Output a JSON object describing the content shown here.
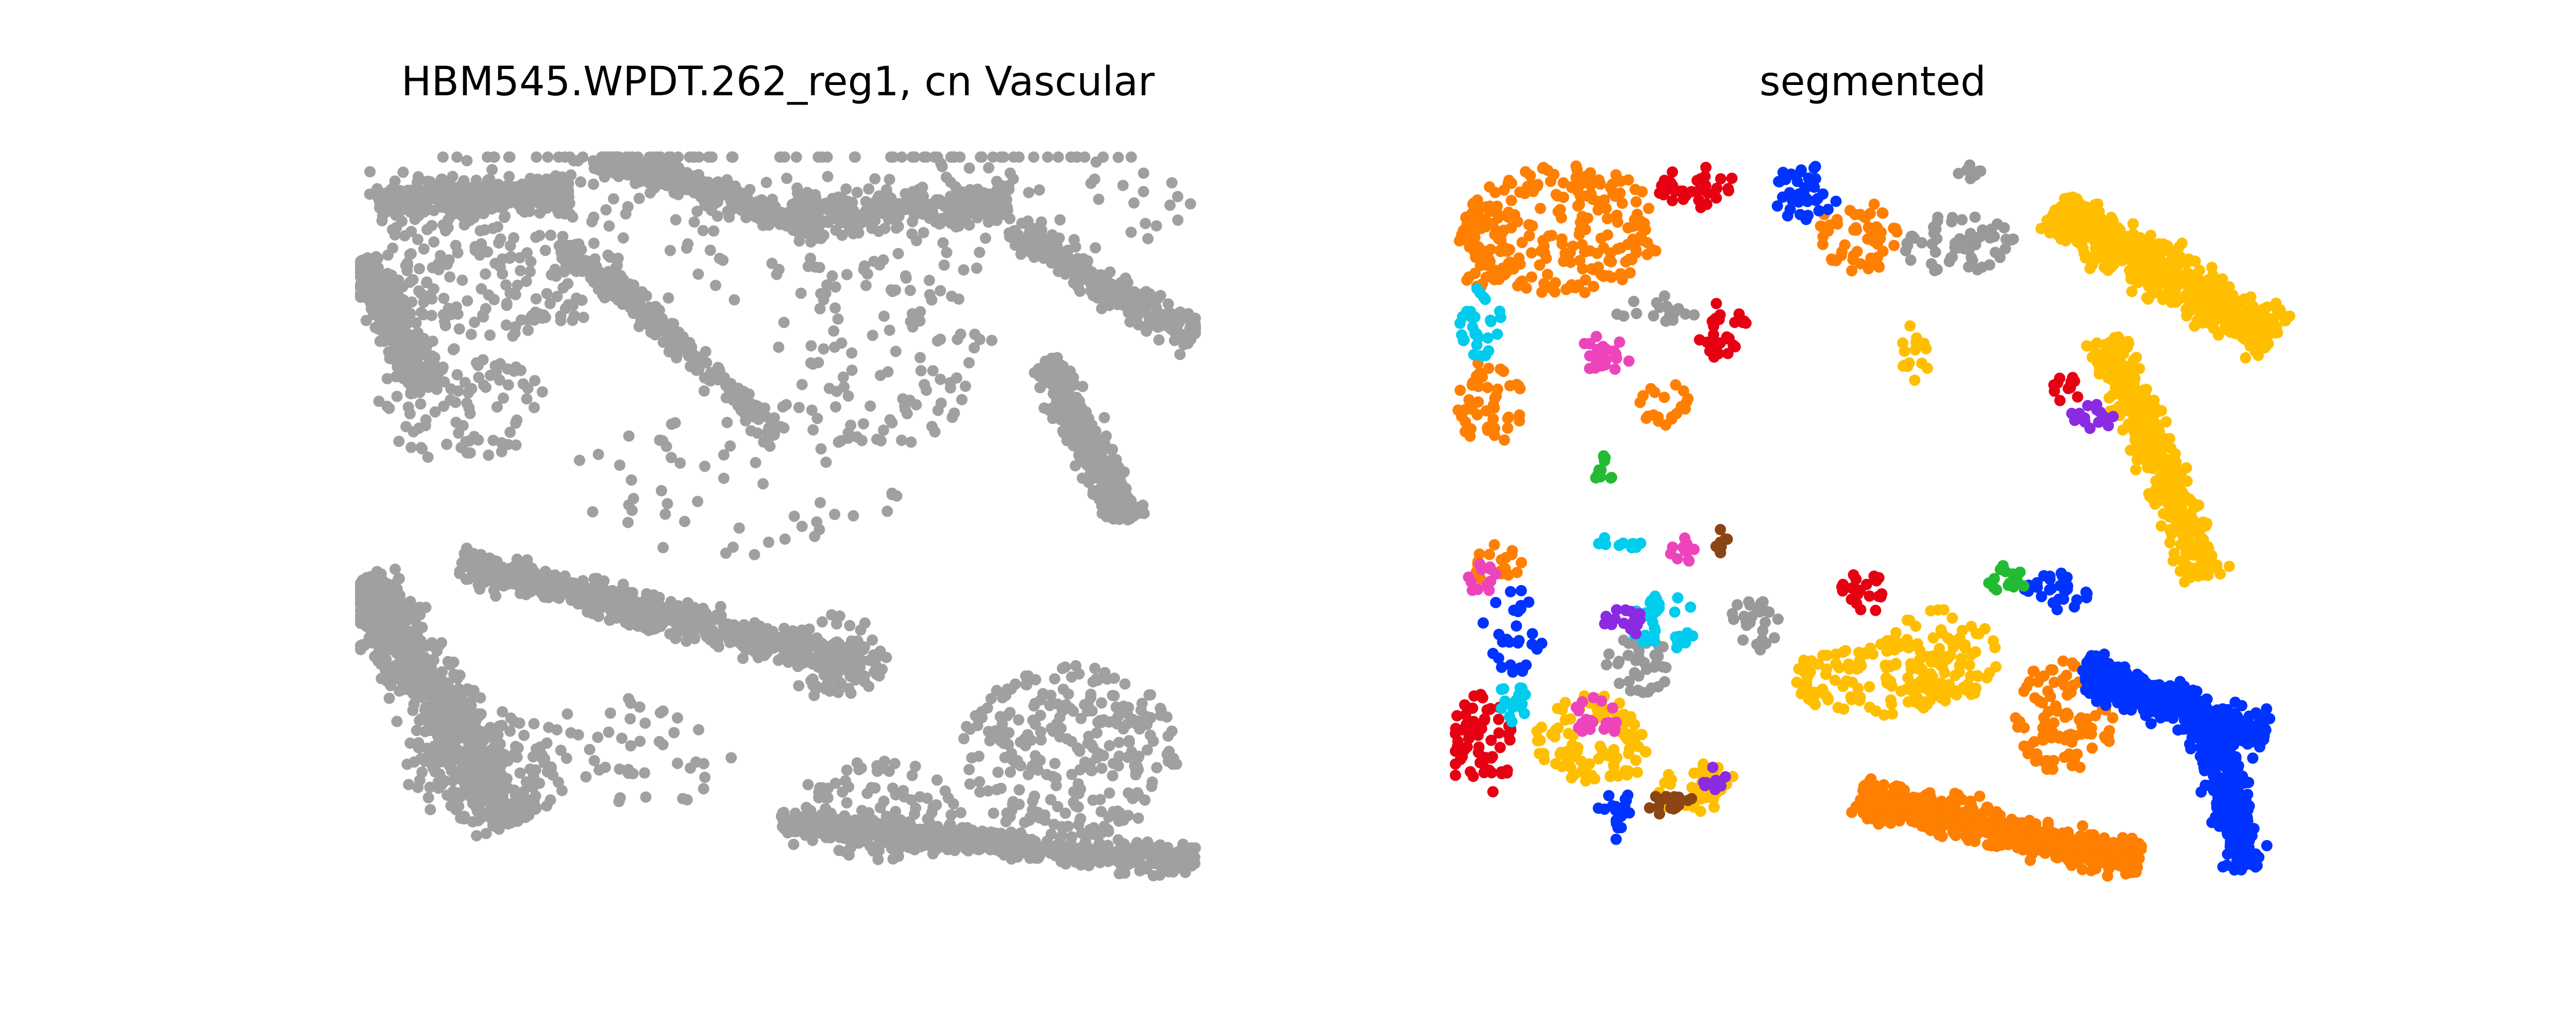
{
  "chart_data": [
    {
      "type": "scatter",
      "title": "HBM545.WPDT.262_reg1, cn Vascular",
      "axes": "off",
      "grid": false,
      "legend": "none",
      "point_color": "#a0a0a0",
      "series": [
        {
          "color": "#a0a0a0",
          "regions": [
            {
              "shape": "band",
              "from": [
                0.02,
                0.06
              ],
              "to": [
                0.25,
                0.05
              ],
              "width": 0.07,
              "density": 0.9
            },
            {
              "shape": "band",
              "from": [
                0.0,
                0.14
              ],
              "to": [
                0.08,
                0.32
              ],
              "width": 0.08,
              "density": 0.9
            },
            {
              "shape": "blob",
              "c": [
                0.17,
                0.15
              ],
              "r": [
                0.14,
                0.1
              ],
              "density": 0.55
            },
            {
              "shape": "band",
              "from": [
                0.28,
                0.0
              ],
              "to": [
                0.55,
                0.1
              ],
              "width": 0.06,
              "density": 0.9
            },
            {
              "shape": "band",
              "from": [
                0.25,
                0.12
              ],
              "to": [
                0.5,
                0.38
              ],
              "width": 0.05,
              "density": 0.6
            },
            {
              "shape": "band",
              "from": [
                0.52,
                0.08
              ],
              "to": [
                0.78,
                0.06
              ],
              "width": 0.08,
              "density": 0.55
            },
            {
              "shape": "band",
              "from": [
                0.78,
                0.1
              ],
              "to": [
                1.0,
                0.25
              ],
              "width": 0.07,
              "density": 0.7
            },
            {
              "shape": "band",
              "from": [
                0.82,
                0.28
              ],
              "to": [
                0.92,
                0.5
              ],
              "width": 0.07,
              "density": 0.9
            },
            {
              "shape": "blob",
              "c": [
                0.62,
                0.28
              ],
              "r": [
                0.14,
                0.12
              ],
              "density": 0.25
            },
            {
              "shape": "blob",
              "c": [
                0.12,
                0.34
              ],
              "r": [
                0.1,
                0.08
              ],
              "density": 0.5
            },
            {
              "shape": "blob",
              "c": [
                0.45,
                0.45
              ],
              "r": [
                0.2,
                0.1
              ],
              "density": 0.12
            },
            {
              "shape": "band",
              "from": [
                0.12,
                0.56
              ],
              "to": [
                0.6,
                0.7
              ],
              "width": 0.07,
              "density": 0.9
            },
            {
              "shape": "blob",
              "c": [
                0.57,
                0.69
              ],
              "r": [
                0.06,
                0.06
              ],
              "density": 0.9
            },
            {
              "shape": "band",
              "from": [
                0.0,
                0.58
              ],
              "to": [
                0.18,
                0.92
              ],
              "width": 0.12,
              "density": 0.75
            },
            {
              "shape": "blob",
              "c": [
                0.15,
                0.84
              ],
              "r": [
                0.1,
                0.08
              ],
              "density": 0.75
            },
            {
              "shape": "blob",
              "c": [
                0.85,
                0.82
              ],
              "r": [
                0.13,
                0.12
              ],
              "density": 0.8
            },
            {
              "shape": "band",
              "from": [
                0.5,
                0.92
              ],
              "to": [
                1.0,
                0.97
              ],
              "width": 0.06,
              "density": 0.9
            },
            {
              "shape": "blob",
              "c": [
                0.62,
                0.9
              ],
              "r": [
                0.1,
                0.07
              ],
              "density": 0.7
            },
            {
              "shape": "blob",
              "c": [
                0.33,
                0.82
              ],
              "r": [
                0.12,
                0.08
              ],
              "density": 0.2
            },
            {
              "shape": "blob",
              "c": [
                0.5,
                0.05
              ],
              "r": [
                0.5,
                0.15
              ],
              "density": 0.15
            }
          ]
        }
      ]
    },
    {
      "type": "scatter",
      "title": "segmented",
      "axes": "off",
      "grid": false,
      "legend": "none",
      "series": [
        {
          "color": "#ff7f00",
          "regions": [
            {
              "shape": "blob",
              "c": [
                0.13,
                0.1
              ],
              "r": [
                0.12,
                0.09
              ],
              "density": 0.9
            },
            {
              "shape": "blob",
              "c": [
                0.03,
                0.12
              ],
              "r": [
                0.03,
                0.06
              ],
              "density": 0.9
            },
            {
              "shape": "blob",
              "c": [
                0.48,
                0.11
              ],
              "r": [
                0.05,
                0.05
              ],
              "density": 0.9
            },
            {
              "shape": "blob",
              "c": [
                0.04,
                0.34
              ],
              "r": [
                0.04,
                0.06
              ],
              "density": 0.8
            },
            {
              "shape": "blob",
              "c": [
                0.25,
                0.34
              ],
              "r": [
                0.03,
                0.03
              ],
              "density": 0.8
            },
            {
              "shape": "band",
              "from": [
                0.48,
                0.88
              ],
              "to": [
                0.82,
                0.97
              ],
              "width": 0.08,
              "density": 0.9
            },
            {
              "shape": "blob",
              "c": [
                0.73,
                0.77
              ],
              "r": [
                0.06,
                0.08
              ],
              "density": 0.9
            },
            {
              "shape": "blob",
              "c": [
                0.05,
                0.56
              ],
              "r": [
                0.03,
                0.03
              ],
              "density": 0.8
            }
          ]
        },
        {
          "color": "#ffbf00",
          "regions": [
            {
              "shape": "band",
              "from": [
                0.72,
                0.07
              ],
              "to": [
                0.98,
                0.25
              ],
              "width": 0.1,
              "density": 0.85
            },
            {
              "shape": "band",
              "from": [
                0.78,
                0.25
              ],
              "to": [
                0.9,
                0.58
              ],
              "width": 0.07,
              "density": 0.9
            },
            {
              "shape": "blob",
              "c": [
                0.5,
                0.72
              ],
              "r": [
                0.1,
                0.05
              ],
              "density": 0.9
            },
            {
              "shape": "blob",
              "c": [
                0.58,
                0.69
              ],
              "r": [
                0.07,
                0.07
              ],
              "density": 0.9
            },
            {
              "shape": "blob",
              "c": [
                0.17,
                0.8
              ],
              "r": [
                0.08,
                0.06
              ],
              "density": 0.9
            },
            {
              "shape": "blob",
              "c": [
                0.29,
                0.87
              ],
              "r": [
                0.05,
                0.04
              ],
              "density": 0.9
            },
            {
              "shape": "blob",
              "c": [
                0.55,
                0.27
              ],
              "r": [
                0.02,
                0.04
              ],
              "density": 0.7
            }
          ]
        },
        {
          "color": "#0033ff",
          "regions": [
            {
              "shape": "blob",
              "c": [
                0.42,
                0.05
              ],
              "r": [
                0.04,
                0.04
              ],
              "density": 0.95
            },
            {
              "shape": "band",
              "from": [
                0.75,
                0.71
              ],
              "to": [
                0.97,
                0.8
              ],
              "width": 0.08,
              "density": 0.9
            },
            {
              "shape": "band",
              "from": [
                0.9,
                0.78
              ],
              "to": [
                0.95,
                0.98
              ],
              "width": 0.07,
              "density": 0.9
            },
            {
              "shape": "blob",
              "c": [
                0.72,
                0.6
              ],
              "r": [
                0.04,
                0.03
              ],
              "density": 0.9
            },
            {
              "shape": "blob",
              "c": [
                0.19,
                0.9
              ],
              "r": [
                0.02,
                0.04
              ],
              "density": 0.8
            },
            {
              "shape": "blob",
              "c": [
                0.07,
                0.65
              ],
              "r": [
                0.04,
                0.06
              ],
              "density": 0.5
            }
          ]
        },
        {
          "color": "#e60012",
          "regions": [
            {
              "shape": "blob",
              "c": [
                0.29,
                0.04
              ],
              "r": [
                0.05,
                0.03
              ],
              "density": 0.95
            },
            {
              "shape": "blob",
              "c": [
                0.03,
                0.81
              ],
              "r": [
                0.04,
                0.07
              ],
              "density": 0.95
            },
            {
              "shape": "blob",
              "c": [
                0.32,
                0.24
              ],
              "r": [
                0.03,
                0.04
              ],
              "density": 0.9
            },
            {
              "shape": "blob",
              "c": [
                0.49,
                0.6
              ],
              "r": [
                0.03,
                0.03
              ],
              "density": 0.9
            },
            {
              "shape": "blob",
              "c": [
                0.73,
                0.32
              ],
              "r": [
                0.02,
                0.02
              ],
              "density": 0.9
            }
          ]
        },
        {
          "color": "#999999",
          "regions": [
            {
              "shape": "blob",
              "c": [
                0.6,
                0.12
              ],
              "r": [
                0.07,
                0.04
              ],
              "density": 0.9
            },
            {
              "shape": "blob",
              "c": [
                0.22,
                0.7
              ],
              "r": [
                0.04,
                0.04
              ],
              "density": 0.9
            },
            {
              "shape": "blob",
              "c": [
                0.36,
                0.64
              ],
              "r": [
                0.03,
                0.04
              ],
              "density": 0.8
            },
            {
              "shape": "blob",
              "c": [
                0.24,
                0.21
              ],
              "r": [
                0.05,
                0.02
              ],
              "density": 0.6
            },
            {
              "shape": "blob",
              "c": [
                0.62,
                0.02
              ],
              "r": [
                0.02,
                0.01
              ],
              "density": 0.8
            }
          ]
        },
        {
          "color": "#00ccee",
          "regions": [
            {
              "shape": "blob",
              "c": [
                0.03,
                0.23
              ],
              "r": [
                0.025,
                0.05
              ],
              "density": 0.9
            },
            {
              "shape": "blob",
              "c": [
                0.25,
                0.64
              ],
              "r": [
                0.04,
                0.04
              ],
              "density": 0.9
            },
            {
              "shape": "blob",
              "c": [
                0.07,
                0.75
              ],
              "r": [
                0.02,
                0.03
              ],
              "density": 0.9
            },
            {
              "shape": "blob",
              "c": [
                0.2,
                0.53
              ],
              "r": [
                0.03,
                0.01
              ],
              "density": 0.9
            }
          ]
        },
        {
          "color": "#ee44bb",
          "regions": [
            {
              "shape": "blob",
              "c": [
                0.18,
                0.27
              ],
              "r": [
                0.03,
                0.03
              ],
              "density": 0.9
            },
            {
              "shape": "blob",
              "c": [
                0.17,
                0.77
              ],
              "r": [
                0.03,
                0.03
              ],
              "density": 0.9
            },
            {
              "shape": "blob",
              "c": [
                0.03,
                0.58
              ],
              "r": [
                0.02,
                0.02
              ],
              "density": 0.9
            },
            {
              "shape": "blob",
              "c": [
                0.27,
                0.54
              ],
              "r": [
                0.02,
                0.02
              ],
              "density": 0.9
            }
          ]
        },
        {
          "color": "#8a2be2",
          "regions": [
            {
              "shape": "blob",
              "c": [
                0.2,
                0.64
              ],
              "r": [
                0.03,
                0.02
              ],
              "density": 0.9
            },
            {
              "shape": "blob",
              "c": [
                0.76,
                0.36
              ],
              "r": [
                0.03,
                0.02
              ],
              "density": 0.9
            },
            {
              "shape": "blob",
              "c": [
                0.31,
                0.86
              ],
              "r": [
                0.02,
                0.02
              ],
              "density": 0.9
            }
          ]
        },
        {
          "color": "#22bb33",
          "regions": [
            {
              "shape": "blob",
              "c": [
                0.66,
                0.58
              ],
              "r": [
                0.025,
                0.02
              ],
              "density": 0.9
            },
            {
              "shape": "blob",
              "c": [
                0.18,
                0.43
              ],
              "r": [
                0.02,
                0.02
              ],
              "density": 0.8
            }
          ]
        },
        {
          "color": "#8b4513",
          "regions": [
            {
              "shape": "blob",
              "c": [
                0.26,
                0.89
              ],
              "r": [
                0.03,
                0.02
              ],
              "density": 0.9
            },
            {
              "shape": "blob",
              "c": [
                0.32,
                0.53
              ],
              "r": [
                0.01,
                0.02
              ],
              "density": 0.9
            }
          ]
        }
      ],
      "scatter_colors": [
        "#ff7f00",
        "#ffbf00",
        "#0033ff",
        "#e60012",
        "#999999",
        "#00ccee",
        "#ee44bb",
        "#8a2be2",
        "#22bb33",
        "#8b4513"
      ]
    }
  ]
}
